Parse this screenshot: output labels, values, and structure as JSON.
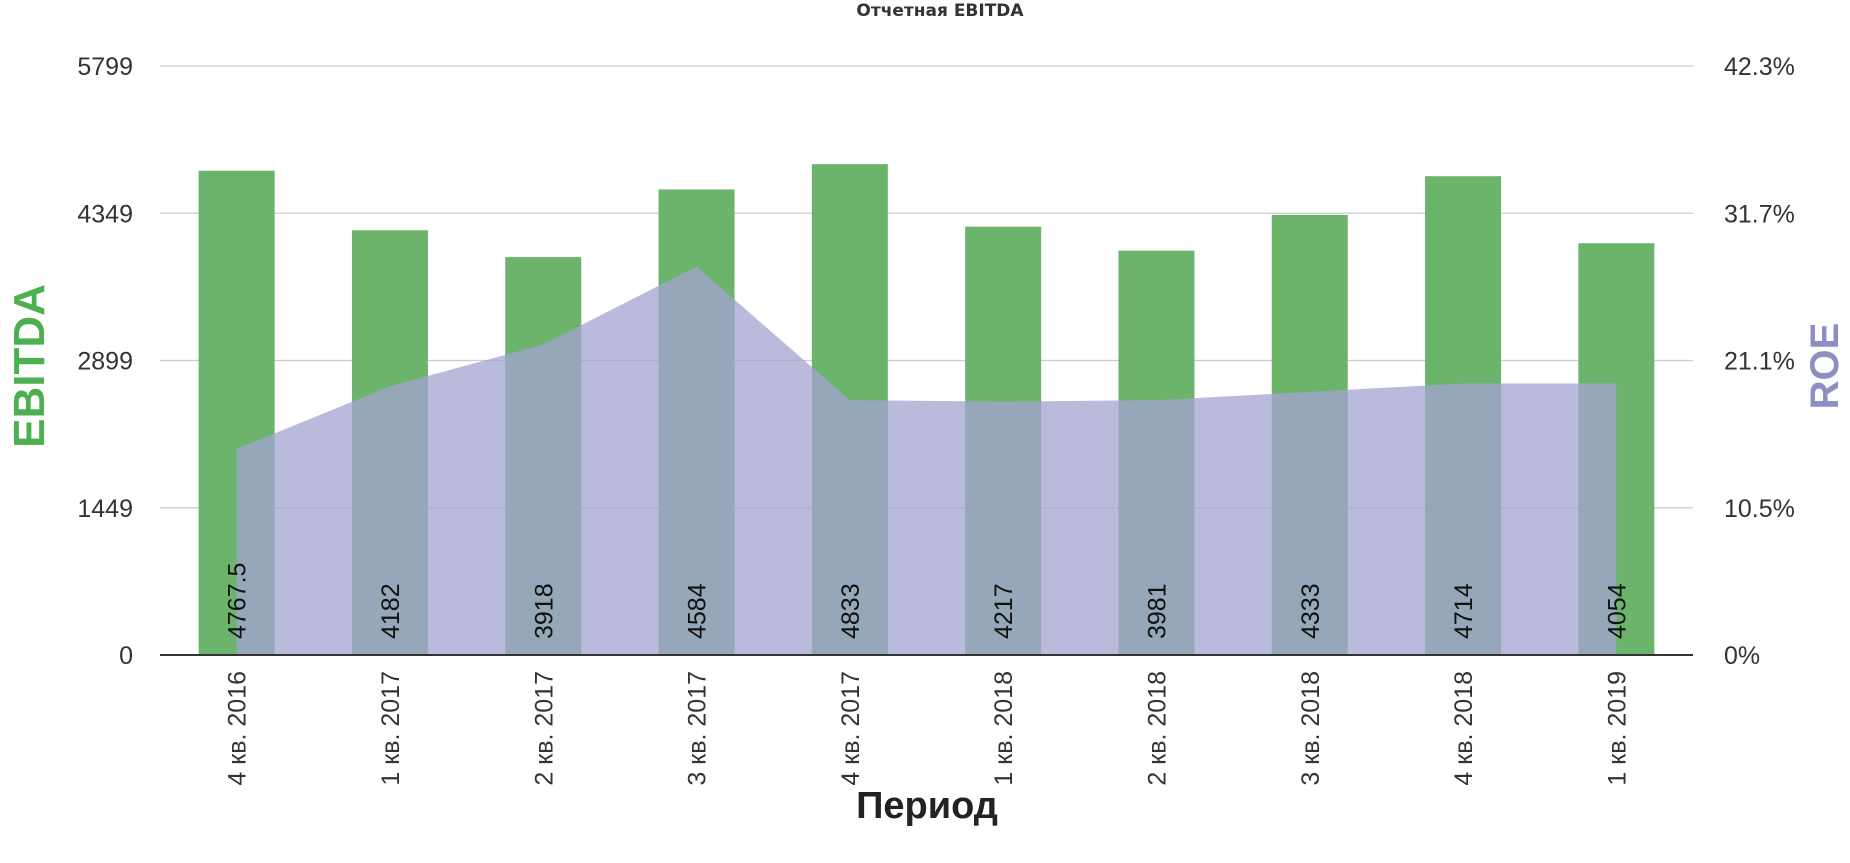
{
  "chart_data": {
    "type": "bar",
    "title": "Отчетная EBITDA",
    "xlabel": "Период",
    "ylabel": "EBITDA",
    "y2label": "ROE",
    "categories": [
      "4 кв. 2016",
      "1 кв. 2017",
      "2 кв. 2017",
      "3 кв. 2017",
      "4 кв. 2017",
      "1 кв. 2018",
      "2 кв. 2018",
      "3 кв. 2018",
      "4 кв. 2018",
      "1 кв. 2019"
    ],
    "series": [
      {
        "type": "bar",
        "axis": "left",
        "values": [
          4767.5,
          4182,
          3918,
          4584,
          4833,
          4217,
          3981,
          4333,
          4714,
          4054
        ],
        "labels": [
          "4767.5",
          "4182",
          "3918",
          "4584",
          "4833",
          "4217",
          "3981",
          "4333",
          "4714",
          "4054"
        ],
        "color": "#6cb46b"
      },
      {
        "type": "area",
        "axis": "right",
        "values": [
          14.8,
          19.3,
          22.3,
          27.9,
          18.3,
          18.2,
          18.3,
          18.9,
          19.5,
          19.5
        ],
        "color": "#a3a3d1"
      }
    ],
    "ylim": [
      0,
      5799
    ],
    "yticks": [
      "0",
      "1449",
      "2899",
      "4349",
      "5799"
    ],
    "y2lim": [
      0,
      42.3
    ],
    "y2ticks": [
      "0%",
      "10.5%",
      "21.1%",
      "31.7%",
      "42.3%"
    ],
    "grid": true,
    "colors": {
      "ebitda_title": "#4caf50",
      "roe_title": "#8e8ec4",
      "grid": "#cccccc",
      "axis": "#333333"
    }
  }
}
